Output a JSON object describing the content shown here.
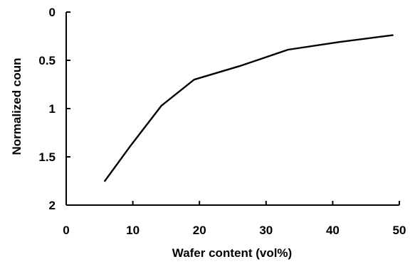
{
  "chart_data": {
    "type": "line",
    "title": "",
    "xlabel": "Wafer content (vol%)",
    "ylabel": "Normalized coun",
    "xlim": [
      0,
      50
    ],
    "ylim": [
      0,
      2
    ],
    "y_inverted": true,
    "grid": false,
    "legend": "none",
    "xticks": [
      0,
      10,
      20,
      30,
      40,
      50
    ],
    "xtick_labels": [
      "0",
      "10",
      "20",
      "30",
      "40",
      "50"
    ],
    "yticks": [
      0,
      0.5,
      1,
      1.5,
      2
    ],
    "ytick_labels": [
      "0",
      "0.5",
      "1",
      "1.5",
      "2"
    ],
    "series": [
      {
        "color": "#000000",
        "x": [
          5.8,
          9.5,
          14.3,
          19.2,
          26.0,
          33.3,
          41.0,
          49.0
        ],
        "y": [
          1.75,
          1.4,
          0.97,
          0.7,
          0.56,
          0.39,
          0.31,
          0.24
        ]
      }
    ]
  }
}
